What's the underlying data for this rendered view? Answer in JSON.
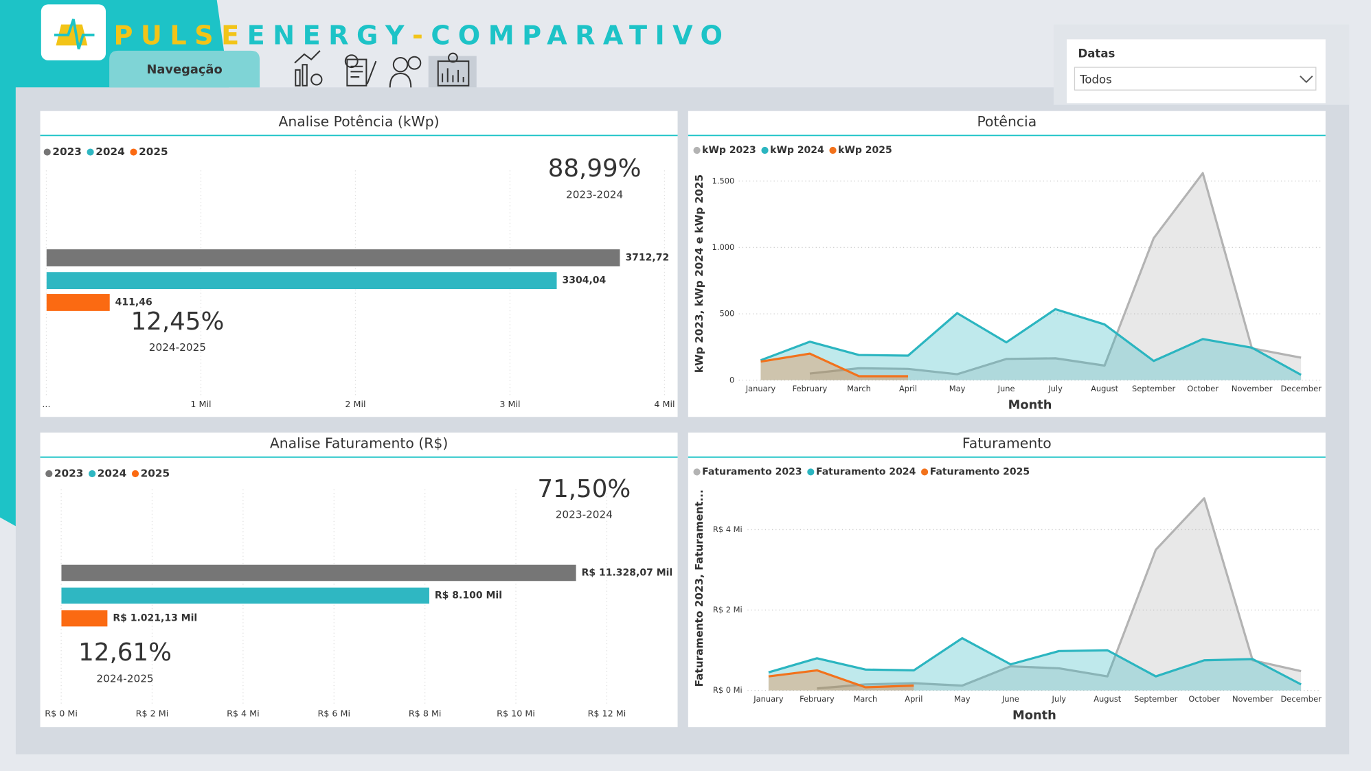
{
  "header": {
    "title_parts": [
      "PULSE",
      "ENERGY",
      "-",
      "COMPARATIVO"
    ],
    "nav_tab": "Navegação"
  },
  "filter": {
    "label": "Datas",
    "value": "Todos"
  },
  "chart_data": [
    {
      "type": "hbar",
      "title": "Analise Potência (kWp)",
      "series": [
        {
          "name": "2023",
          "color": "#767676",
          "values": [
            3712.72
          ],
          "value_labels": [
            "3712,72"
          ]
        },
        {
          "name": "2024",
          "color": "#2fb7c2",
          "values": [
            3304.04
          ],
          "value_labels": [
            "3304,04"
          ]
        },
        {
          "name": "2025",
          "color": "#fb6a12",
          "values": [
            411.46
          ],
          "value_labels": [
            "411,46"
          ]
        }
      ],
      "xlim": [
        0,
        4000
      ],
      "xticks": [
        {
          "value": 0,
          "label": "..."
        },
        {
          "value": 1000,
          "label": "1 Mil"
        },
        {
          "value": 2000,
          "label": "2 Mil"
        },
        {
          "value": 3000,
          "label": "3 Mil"
        },
        {
          "value": 4000,
          "label": "4 Mil"
        }
      ],
      "grid": true,
      "annotations": [
        {
          "text": "88,99%",
          "caption": "2023-2024"
        },
        {
          "text": "12,45%",
          "caption": "2024-2025"
        }
      ]
    },
    {
      "type": "area",
      "title": "Potência",
      "x_label": "Month",
      "y_label": "kWp 2023, kWp 2024 e kWp 2025",
      "categories": [
        "January",
        "February",
        "March",
        "April",
        "May",
        "June",
        "July",
        "August",
        "September",
        "October",
        "November",
        "December"
      ],
      "series": [
        {
          "name": "kWp 2023",
          "color": "#b3b3b3",
          "values": [
            null,
            50,
            90,
            85,
            45,
            160,
            165,
            110,
            1070,
            1560,
            240,
            170
          ]
        },
        {
          "name": "kWp 2024",
          "color": "#2bb5c0",
          "values": [
            150,
            290,
            190,
            185,
            505,
            285,
            535,
            420,
            145,
            310,
            245,
            40
          ]
        },
        {
          "name": "kWp 2025",
          "color": "#f2721c",
          "values": [
            140,
            200,
            30,
            30,
            null,
            null,
            null,
            null,
            null,
            null,
            null,
            null
          ]
        }
      ],
      "ylim": [
        0,
        1600
      ],
      "yticks": [
        0,
        500,
        {
          "value": 1000,
          "label": "1.000"
        },
        {
          "value": 1500,
          "label": "1.500"
        }
      ],
      "grid": true
    },
    {
      "type": "hbar",
      "title": "Analise Faturamento (R$)",
      "series": [
        {
          "name": "2023",
          "color": "#767676",
          "values": [
            11328070
          ],
          "value_labels": [
            "R$ 11.328,07 Mil"
          ]
        },
        {
          "name": "2024",
          "color": "#2fb7c2",
          "values": [
            8100000
          ],
          "value_labels": [
            "R$ 8.100 Mil"
          ]
        },
        {
          "name": "2025",
          "color": "#fb6a12",
          "values": [
            1021130
          ],
          "value_labels": [
            "R$ 1.021,13 Mil"
          ]
        }
      ],
      "xlim": [
        0,
        13000000
      ],
      "xticks": [
        {
          "value": 0,
          "label": "R$ 0 Mi"
        },
        {
          "value": 2000000,
          "label": "R$ 2 Mi"
        },
        {
          "value": 4000000,
          "label": "R$ 4 Mi"
        },
        {
          "value": 6000000,
          "label": "R$ 6 Mi"
        },
        {
          "value": 8000000,
          "label": "R$ 8 Mi"
        },
        {
          "value": 10000000,
          "label": "R$ 10 Mi"
        },
        {
          "value": 12000000,
          "label": "R$ 12 Mi"
        }
      ],
      "grid": true,
      "annotations": [
        {
          "text": "71,50%",
          "caption": "2023-2024"
        },
        {
          "text": "12,61%",
          "caption": "2024-2025"
        }
      ]
    },
    {
      "type": "area",
      "title": "Faturamento",
      "x_label": "Month",
      "y_label": "Faturamento 2023, Faturament...",
      "categories": [
        "January",
        "February",
        "March",
        "April",
        "May",
        "June",
        "July",
        "August",
        "September",
        "October",
        "November",
        "December"
      ],
      "series": [
        {
          "name": "Faturamento 2023",
          "color": "#b3b3b3",
          "values": [
            null,
            50000,
            150000,
            180000,
            120000,
            600000,
            550000,
            350000,
            3500000,
            4780000,
            750000,
            480000
          ]
        },
        {
          "name": "Faturamento 2024",
          "color": "#2bb5c0",
          "values": [
            450000,
            800000,
            520000,
            500000,
            1300000,
            650000,
            980000,
            1000000,
            350000,
            750000,
            780000,
            150000
          ]
        },
        {
          "name": "Faturamento 2025",
          "color": "#f2721c",
          "values": [
            350000,
            500000,
            80000,
            120000,
            null,
            null,
            null,
            null,
            null,
            null,
            null,
            null
          ]
        }
      ],
      "ylim": [
        0,
        5000000
      ],
      "yticks": [
        {
          "value": 0,
          "label": "R$ 0 Mi"
        },
        {
          "value": 2000000,
          "label": "R$ 2 Mi"
        },
        {
          "value": 4000000,
          "label": "R$ 4 Mi"
        }
      ],
      "grid": true
    }
  ]
}
